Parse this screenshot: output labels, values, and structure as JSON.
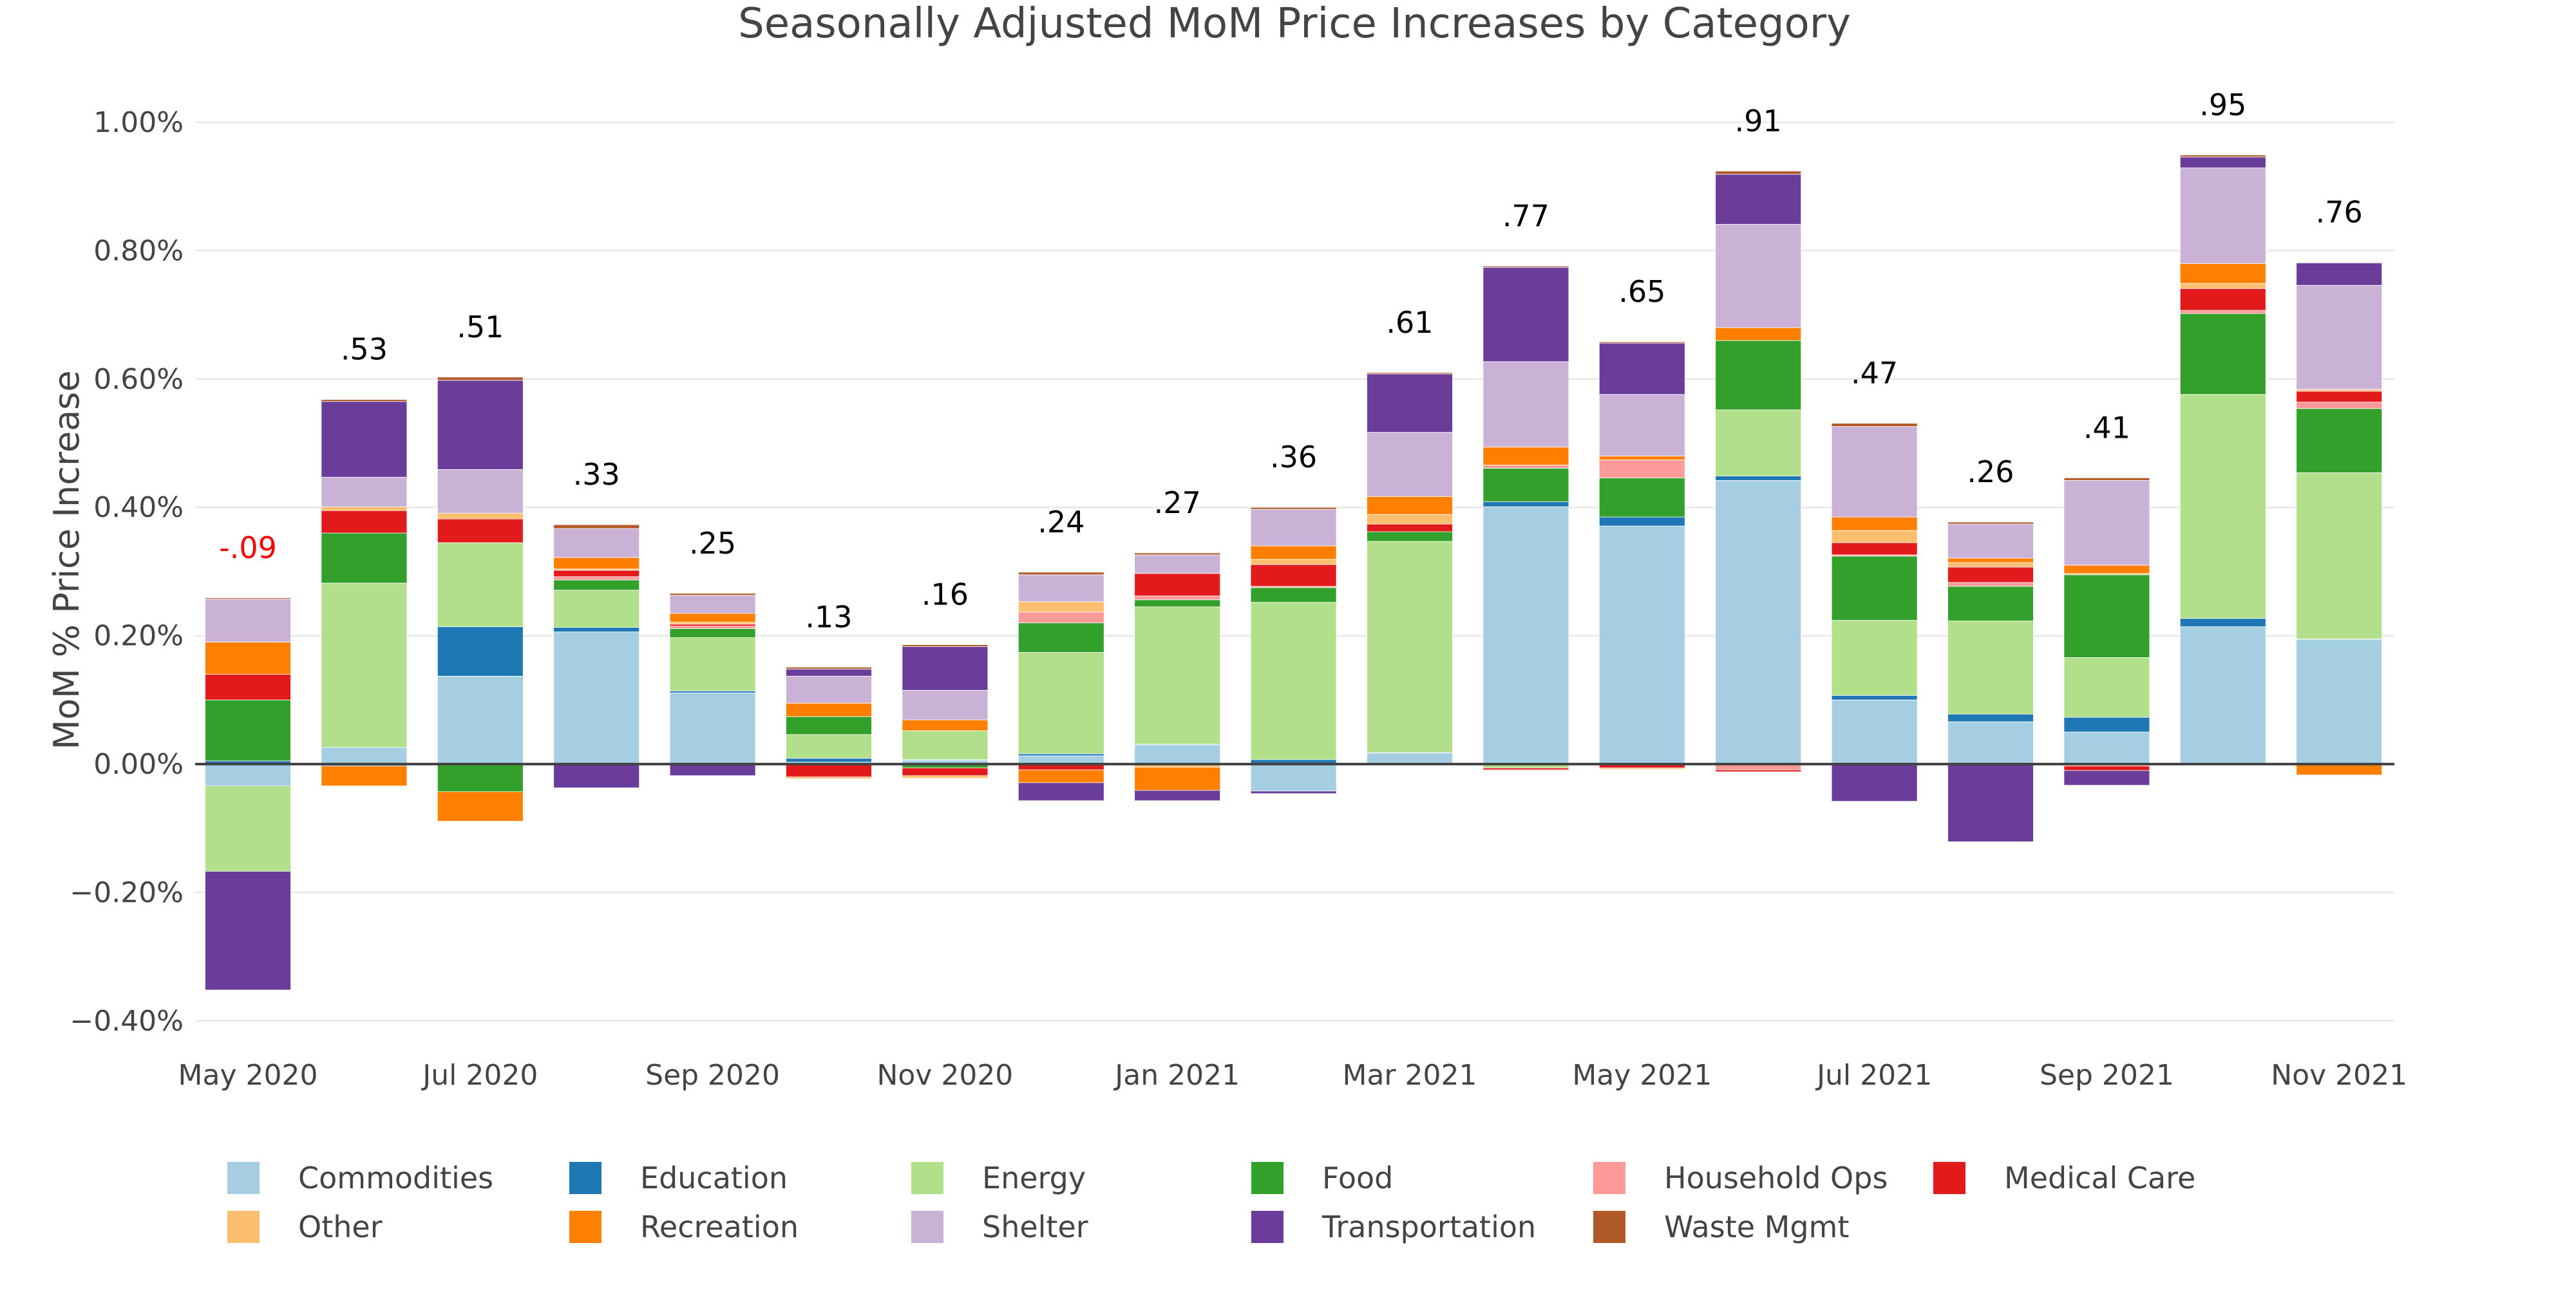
{
  "chart_data": {
    "type": "bar",
    "barmode": "relative",
    "title": "Seasonally Adjusted MoM Price Increases by Category",
    "xlabel": "",
    "ylabel": "MoM % Price Increase",
    "ylim": [
      -0.4,
      1.0
    ],
    "yticks": [
      -0.4,
      -0.2,
      0,
      0.2,
      0.4,
      0.6,
      0.8,
      1.0
    ],
    "ytick_labels": [
      "−0.40%",
      "−0.20%",
      "0.00%",
      "0.20%",
      "0.40%",
      "0.60%",
      "0.80%",
      "1.00%"
    ],
    "grid": true,
    "legend_position": "bottom",
    "categories": [
      "May 2020",
      "Jun 2020",
      "Jul 2020",
      "Aug 2020",
      "Sep 2020",
      "Oct 2020",
      "Nov 2020",
      "Dec 2020",
      "Jan 2021",
      "Feb 2021",
      "Mar 2021",
      "Apr 2021",
      "May 2021",
      "Jun 2021",
      "Jul 2021",
      "Aug 2021",
      "Sep 2021",
      "Oct 2021",
      "Nov 2021"
    ],
    "xtick_labels": [
      "May 2020",
      "",
      "Jul 2020",
      "",
      "Sep 2020",
      "",
      "Nov 2020",
      "",
      "Jan 2021",
      "",
      "Mar 2021",
      "",
      "May 2021",
      "",
      "Jul 2021",
      "",
      "Sep 2021",
      "",
      "Nov 2021"
    ],
    "series": [
      {
        "name": "Commodities",
        "color": "#a6cee3",
        "values": [
          -0.034,
          0.026,
          0.137,
          0.206,
          0.111,
          0.003,
          0.006,
          0.013,
          0.03,
          -0.042,
          0.017,
          0.401,
          0.371,
          0.442,
          0.1,
          0.066,
          0.05,
          0.214,
          0.194
        ]
      },
      {
        "name": "Education",
        "color": "#1f78b4",
        "values": [
          0.005,
          -0.003,
          0.077,
          0.007,
          0.003,
          0.006,
          0.001,
          0.003,
          0.001,
          0.007,
          0.001,
          0.008,
          0.014,
          0.007,
          0.007,
          0.012,
          0.023,
          0.013,
          0.001
        ]
      },
      {
        "name": "Energy",
        "color": "#b2df8a",
        "values": [
          -0.133,
          0.256,
          0.131,
          0.058,
          0.083,
          0.037,
          0.045,
          0.158,
          0.214,
          0.245,
          0.329,
          -0.006,
          0.0,
          0.103,
          0.117,
          0.145,
          0.093,
          0.349,
          0.259
        ]
      },
      {
        "name": "Food",
        "color": "#33a02c",
        "values": [
          0.095,
          0.078,
          -0.043,
          0.016,
          0.014,
          0.028,
          -0.006,
          0.046,
          0.011,
          0.023,
          0.015,
          0.052,
          0.061,
          0.108,
          0.1,
          0.054,
          0.129,
          0.126,
          0.1
        ]
      },
      {
        "name": "Household Ops",
        "color": "#fb9a99",
        "values": [
          0.0,
          0.0,
          0.0,
          0.005,
          0.004,
          0.0,
          0.0,
          0.017,
          0.006,
          0.002,
          0.0,
          0.005,
          0.028,
          -0.009,
          0.002,
          0.006,
          -0.003,
          0.005,
          0.01
        ]
      },
      {
        "name": "Medical Care",
        "color": "#e31a1c",
        "values": [
          0.04,
          0.035,
          0.037,
          0.01,
          0.003,
          -0.02,
          -0.012,
          -0.009,
          0.035,
          0.034,
          0.012,
          -0.003,
          -0.006,
          -0.003,
          0.019,
          0.024,
          -0.007,
          0.034,
          0.017
        ]
      },
      {
        "name": "Other",
        "color": "#fdbf6f",
        "values": [
          0.0,
          0.006,
          0.009,
          0.002,
          0.003,
          -0.003,
          -0.004,
          0.016,
          -0.005,
          0.008,
          0.015,
          0.0,
          -0.002,
          0.0,
          0.019,
          0.007,
          0.002,
          0.008,
          0.003
        ]
      },
      {
        "name": "Recreation",
        "color": "#ff7f00",
        "values": [
          0.05,
          -0.031,
          -0.046,
          0.018,
          0.014,
          0.021,
          0.017,
          -0.02,
          -0.036,
          0.021,
          0.028,
          0.028,
          0.006,
          0.02,
          0.021,
          0.007,
          0.013,
          0.031,
          -0.017
        ]
      },
      {
        "name": "Shelter",
        "color": "#cab2d6",
        "values": [
          0.067,
          0.046,
          0.068,
          0.045,
          0.028,
          0.042,
          0.046,
          0.042,
          0.029,
          0.057,
          0.1,
          0.133,
          0.096,
          0.161,
          0.141,
          0.053,
          0.132,
          0.149,
          0.162
        ]
      },
      {
        "name": "Transportation",
        "color": "#6a3d9a",
        "values": [
          -0.185,
          0.118,
          0.139,
          -0.037,
          -0.018,
          0.011,
          0.068,
          -0.028,
          -0.016,
          -0.004,
          0.091,
          0.147,
          0.08,
          0.078,
          -0.058,
          -0.121,
          -0.023,
          0.017,
          0.035
        ]
      },
      {
        "name": "Waste Mgmt",
        "color": "#b15928",
        "values": [
          0.002,
          0.003,
          0.005,
          0.006,
          0.003,
          0.003,
          0.003,
          0.004,
          0.003,
          0.003,
          0.002,
          0.002,
          0.002,
          0.005,
          0.005,
          0.003,
          0.004,
          0.003,
          0.001
        ]
      }
    ],
    "total_labels": [
      "-.09",
      ".53",
      ".51",
      ".33",
      ".25",
      ".13",
      ".16",
      ".24",
      ".27",
      ".36",
      ".61",
      ".77",
      ".65",
      ".91",
      ".47",
      ".26",
      ".41",
      ".95",
      ".76"
    ],
    "total_label_colors": {
      "positive": "#000000",
      "negative": "#ff0000"
    }
  }
}
